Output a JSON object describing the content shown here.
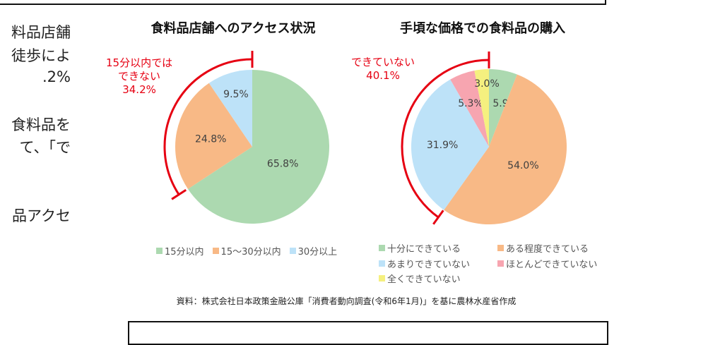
{
  "left_text": [
    "料品店舗",
    "徒歩によ",
    ".2%",
    "食料品を",
    "て、「で",
    "品アクセ"
  ],
  "chart_data": [
    {
      "type": "pie",
      "title": "食料品店舗へのアクセス状況",
      "categories": [
        "15分以内",
        "15～30分以内",
        "30分以上"
      ],
      "values": [
        65.8,
        24.8,
        9.5
      ],
      "labels": [
        "65.8%",
        "24.8%",
        "9.5%"
      ],
      "colors": [
        "#acd9b0",
        "#f8b986",
        "#bde2f8"
      ],
      "start": "12 o'clock, clockwise",
      "legend_position": "bottom",
      "annotation": {
        "text_lines": [
          "15分以内では",
          "できない",
          "34.2%"
        ],
        "color": "#e60012"
      }
    },
    {
      "type": "pie",
      "title": "手頃な価格での食料品の購入",
      "categories": [
        "十分にできている",
        "ある程度できている",
        "あまりできていない",
        "ほとんどできていない",
        "全くできていない"
      ],
      "values": [
        5.9,
        54.0,
        31.9,
        5.3,
        3.0
      ],
      "labels": [
        "5.9%",
        "54.0%",
        "31.9%",
        "5.3%",
        "3.0%"
      ],
      "colors": [
        "#acd9b0",
        "#f8b986",
        "#bde2f8",
        "#f7a5b0",
        "#f5f07f"
      ],
      "start": "12 o'clock, clockwise",
      "legend_position": "bottom",
      "annotation": {
        "text_lines": [
          "できていない",
          "40.1%"
        ],
        "color": "#e60012"
      }
    }
  ],
  "source": "資料：株式会社日本政策金融公庫「消費者動向調査(令和6年1月)」を基に農林水産省作成"
}
